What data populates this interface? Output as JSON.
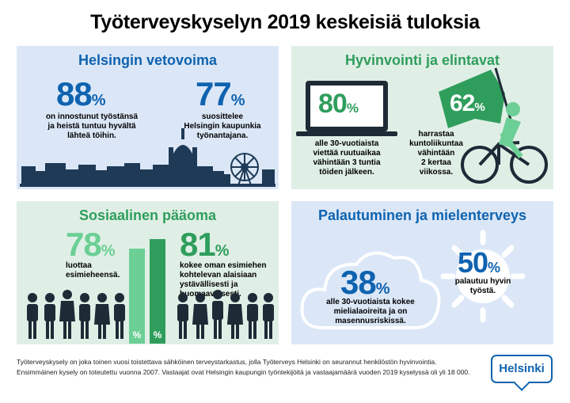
{
  "title": "Työterveyskyselyn 2019 keskeisiä tuloksia",
  "panels": {
    "attractiveness": {
      "title": "Helsingin vetovoima",
      "stat1": {
        "value": "88",
        "unit": "%",
        "text_lines": [
          "on innostunut työstänsä",
          "ja heistä tuntuu hyvältä",
          "lähteä töihin."
        ]
      },
      "stat2": {
        "value": "77",
        "unit": "%",
        "text_lines": [
          "suosittelee",
          "Helsingin kaupunkia",
          "työnantajana."
        ]
      }
    },
    "wellbeing": {
      "title": "Hyvinvointi ja elintavat",
      "stat1": {
        "value": "80",
        "unit": "%",
        "text_lines": [
          "alle 30-vuotiaista",
          "viettää ruutuaikaa",
          "vähintään 3 tuntia",
          "töiden jälkeen."
        ]
      },
      "stat2": {
        "value": "62",
        "unit": "%",
        "text_lines": [
          "harrastaa",
          "kuntoliikuntaa",
          "vähintään",
          "2 kertaa",
          "viikossa."
        ]
      }
    },
    "social": {
      "title": "Sosiaalinen pääoma",
      "stat1": {
        "value": "78",
        "unit": "%",
        "text_lines": [
          "luottaa",
          "esimieheensä."
        ]
      },
      "stat2": {
        "value": "81",
        "unit": "%",
        "text_lines": [
          "kokee oman esimiehen",
          "kohtelevan alaisiaan",
          "ystävällisesti ja",
          "huomaavaisesti."
        ]
      },
      "bar_labels": [
        "%",
        "%"
      ]
    },
    "recovery": {
      "title": "Palautuminen ja mielenterveys",
      "stat1": {
        "value": "38",
        "unit": "%",
        "text_lines": [
          "alle 30-vuotiaista kokee",
          "mielialaoireita ja on",
          "masennusriskissä."
        ]
      },
      "stat2": {
        "value": "50",
        "unit": "%",
        "text_lines": [
          "palautuu hyvin",
          "työstä."
        ]
      }
    }
  },
  "footer": {
    "line1": "Työterveyskysely on joka toinen vuosi toistettava sähköinen terveystarkastus, jolla Työterveys Helsinki on seurannut henkilöstön hyvinvointia.",
    "line2": "Ensimmäinen kysely on toteutettu vuonna 2007. Vastaajat ovat Helsingin kaupungin työntekijöitä ja vastaajamäärä vuoden 2019 kyselyssä oli yli 18 000."
  },
  "logo": "Helsinki",
  "colors": {
    "blue": "#0f63b0",
    "green": "#2f9e5c",
    "panel_blue": "#dbe7f7",
    "panel_green": "#e0efe6"
  }
}
